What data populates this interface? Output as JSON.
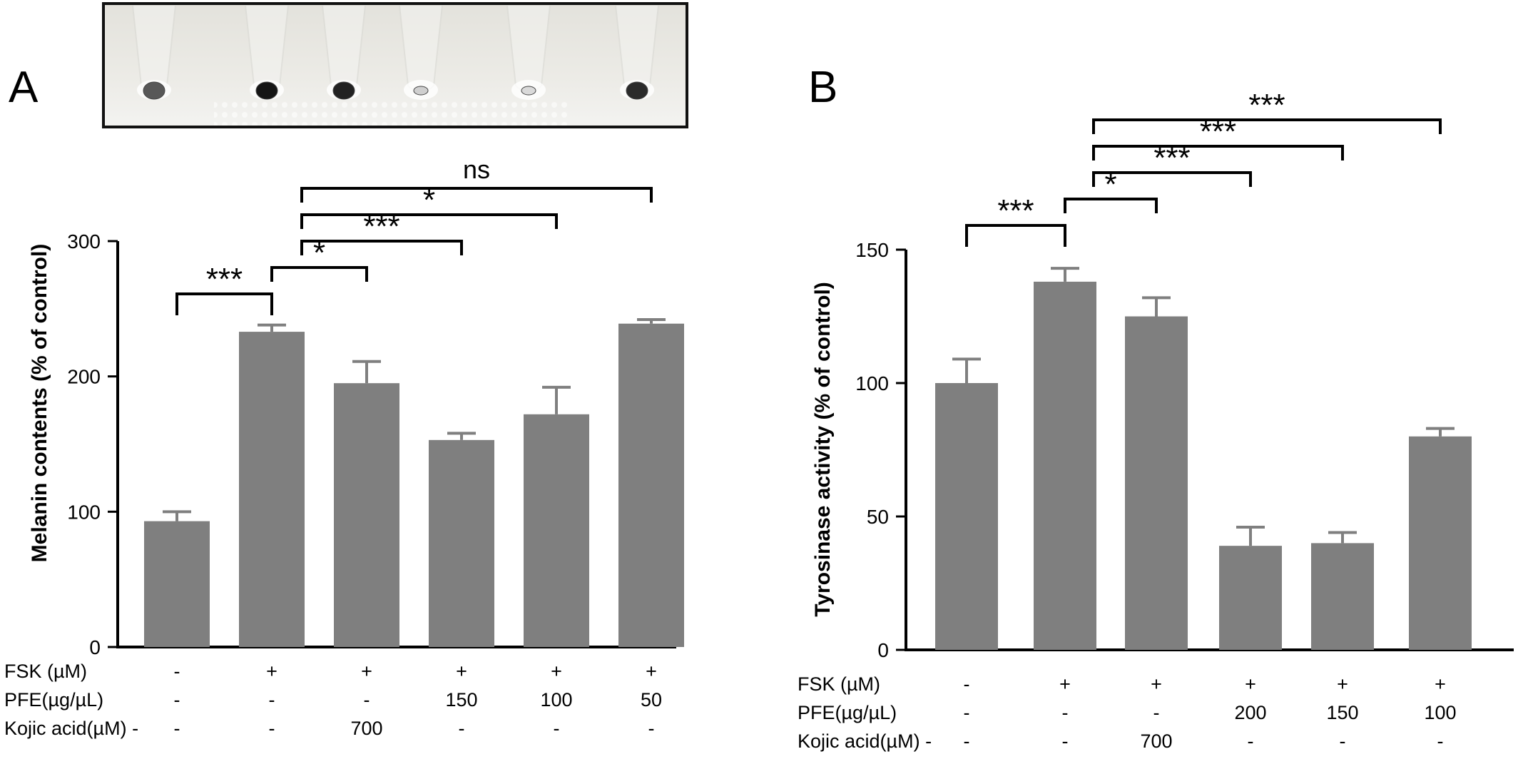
{
  "panels": [
    {
      "letter": "A"
    },
    {
      "letter": "B"
    }
  ],
  "chart_data": [
    {
      "panel": "A",
      "type": "bar",
      "ylabel": "Melanin contents (% of control)",
      "ylim": [
        0,
        300
      ],
      "yticks": [
        "0",
        "100",
        "200",
        "300"
      ],
      "values": [
        93,
        233,
        195,
        153,
        172,
        239
      ],
      "errors": [
        7,
        5,
        16,
        5,
        20,
        3
      ],
      "bar_color": "#7f7f7f",
      "treatments": [
        {
          "label": "FSK (µM)",
          "values": [
            "-",
            "+",
            "+",
            "+",
            "+",
            "+"
          ]
        },
        {
          "label": "PFE(µg/µL)",
          "values": [
            "-",
            "-",
            "-",
            "150",
            "100",
            "50"
          ]
        },
        {
          "label": "Kojic acid(µM) -",
          "values": [
            "-",
            "-",
            "700",
            "-",
            "-",
            "-"
          ]
        }
      ],
      "significance": [
        {
          "from": 0,
          "to": 1,
          "label": "***"
        },
        {
          "from": 1,
          "to": 2,
          "label": "*"
        },
        {
          "from": 1,
          "to": 3,
          "label": "***"
        },
        {
          "from": 1,
          "to": 4,
          "label": "*"
        },
        {
          "from": 1,
          "to": 5,
          "label": "ns"
        }
      ],
      "inset_image": {
        "well_tones": [
          "#585858",
          "#151515",
          "#222222",
          "#cfcfcf",
          "#d9d9d9",
          "#2b2b2b"
        ]
      }
    },
    {
      "panel": "B",
      "type": "bar",
      "ylabel": "Tyrosinase activity (% of control)",
      "ylim": [
        0,
        150
      ],
      "yticks": [
        "0",
        "50",
        "100",
        "150"
      ],
      "values": [
        100,
        138,
        125,
        39,
        40,
        80
      ],
      "errors": [
        9,
        5,
        7,
        7,
        4,
        3
      ],
      "bar_color": "#7f7f7f",
      "treatments": [
        {
          "label": "FSK (µM)",
          "values": [
            "-",
            "+",
            "+",
            "+",
            "+",
            "+"
          ]
        },
        {
          "label": "PFE(µg/µL)",
          "values": [
            "-",
            "-",
            "-",
            "200",
            "150",
            "100"
          ]
        },
        {
          "label": "Kojic acid(µM) -",
          "values": [
            "-",
            "-",
            "700",
            "-",
            "-",
            "-"
          ]
        }
      ],
      "significance": [
        {
          "from": 0,
          "to": 1,
          "label": "***"
        },
        {
          "from": 1,
          "to": 2,
          "label": "*"
        },
        {
          "from": 1,
          "to": 3,
          "label": "***"
        },
        {
          "from": 1,
          "to": 4,
          "label": "***"
        },
        {
          "from": 1,
          "to": 5,
          "label": "***"
        }
      ]
    }
  ]
}
